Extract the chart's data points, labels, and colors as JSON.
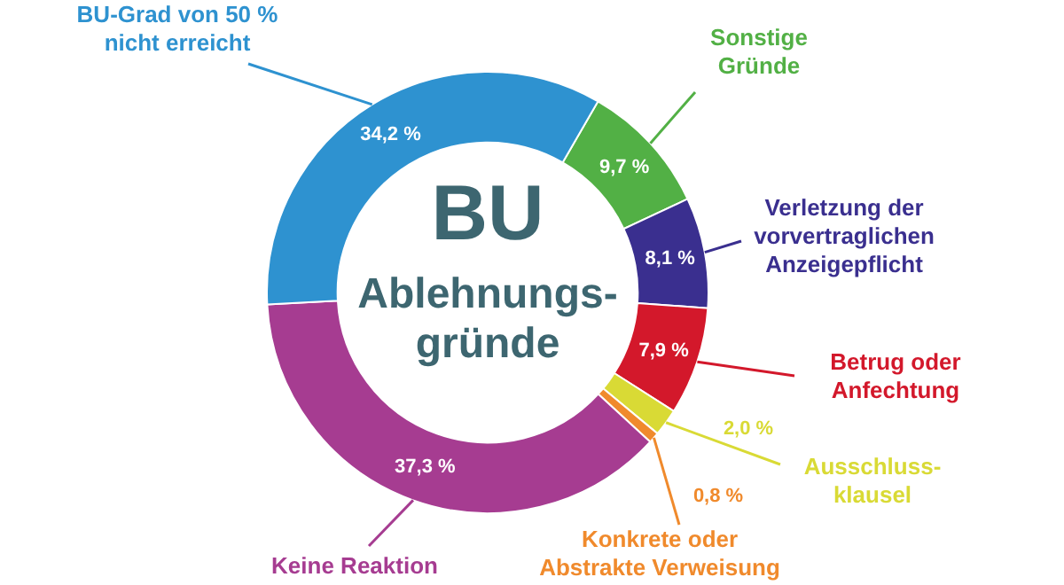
{
  "chart_data": {
    "type": "donut",
    "title": "BU",
    "subtitle": "Ablehnungs-gründe",
    "categories": [
      "Sonstige Gründe",
      "Verletzung der vorvertraglichen Anzeigepflicht",
      "Betrug oder Anfechtung",
      "Ausschluss-klausel",
      "Konkrete oder Abstrakte Verweisung",
      "Keine Reaktion",
      "BU-Grad von 50 % nicht erreicht"
    ],
    "values": [
      9.7,
      8.1,
      7.9,
      2.0,
      0.8,
      37.3,
      34.2
    ],
    "colors": [
      "#52b045",
      "#3a2f8f",
      "#d3182b",
      "#d9da35",
      "#f08a2c",
      "#a63c91",
      "#2e92d0"
    ],
    "value_labels": [
      "9,7 %",
      "8,1 %",
      "7,9 %",
      "2,0 %",
      "0,8 %",
      "37,3 %",
      "34,2 %"
    ]
  }
}
